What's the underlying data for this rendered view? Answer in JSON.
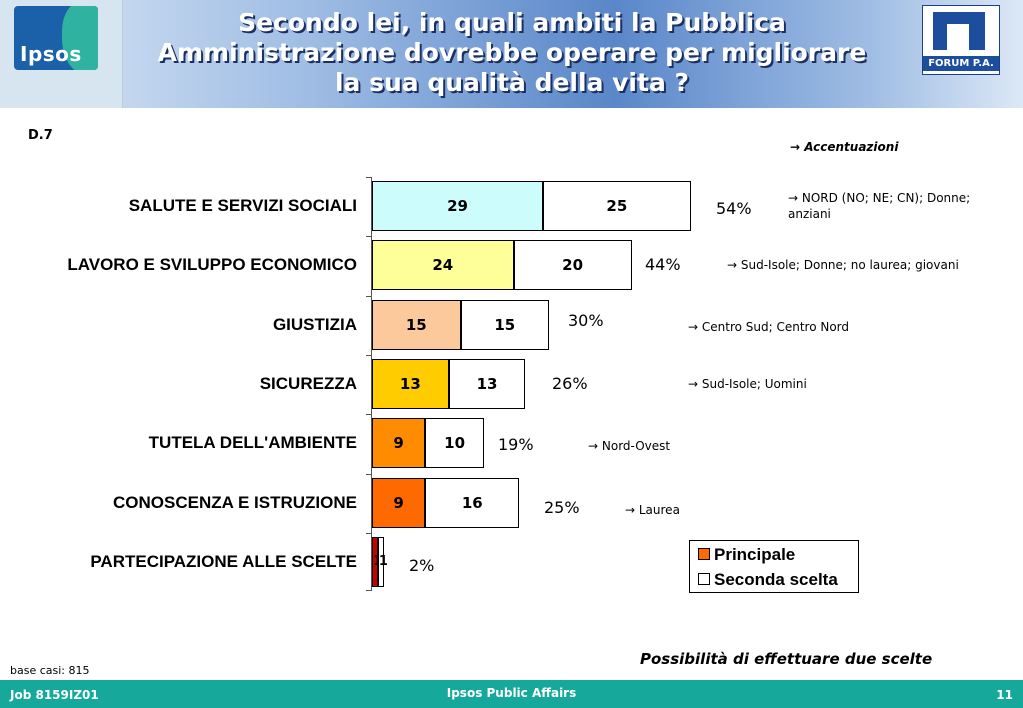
{
  "header": {
    "title_lines": [
      "Secondo lei, in quali ambiti la Pubblica",
      "Amministrazione dovrebbe operare per migliorare",
      "la sua qualità della vita ?"
    ],
    "logo_left_text": "Ipsos",
    "logo_right_text": "FORUM P.A."
  },
  "question_code": "D.7",
  "accentuations_title": "→ Accentuazioni",
  "chart_data": {
    "type": "bar",
    "orientation": "horizontal",
    "stacked": true,
    "categories": [
      "SALUTE E SERVIZI SOCIALI",
      "LAVORO E SVILUPPO ECONOMICO",
      "GIUSTIZIA",
      "SICUREZZA",
      "TUTELA DELL'AMBIENTE",
      "CONOSCENZA E ISTRUZIONE",
      "PARTECIPAZIONE ALLE SCELTE"
    ],
    "series": [
      {
        "name": "Principale",
        "values": [
          29,
          24,
          15,
          13,
          9,
          9,
          1
        ],
        "colors": [
          "#ccfcfc",
          "#ffff99",
          "#fcc99d",
          "#ffcc00",
          "#ff8c00",
          "#ff6a00",
          "#cc0000"
        ]
      },
      {
        "name": "Seconda scelta",
        "values": [
          25,
          20,
          15,
          13,
          10,
          16,
          1
        ],
        "color": "#ffffff"
      }
    ],
    "totals": [
      "54%",
      "44%",
      "30%",
      "26%",
      "19%",
      "25%",
      "2%"
    ],
    "accentuations": [
      "→ NORD (NO; NE; CN); Donne; anziani",
      "→ Sud-Isole; Donne; no laurea; giovani",
      "→ Centro Sud; Centro Nord",
      "→ Sud-Isole; Uomini",
      "→ Nord-Ovest",
      "→ Laurea",
      ""
    ],
    "legend": [
      "Principale",
      "Seconda scelta"
    ],
    "legend_placement": "bottom-right",
    "grid": false
  },
  "note": "Possibilità di effettuare due scelte",
  "base": "base casi: 815",
  "footer": {
    "left": "Job 8159IZ01",
    "center": "Ipsos Public Affairs",
    "right": "11"
  }
}
